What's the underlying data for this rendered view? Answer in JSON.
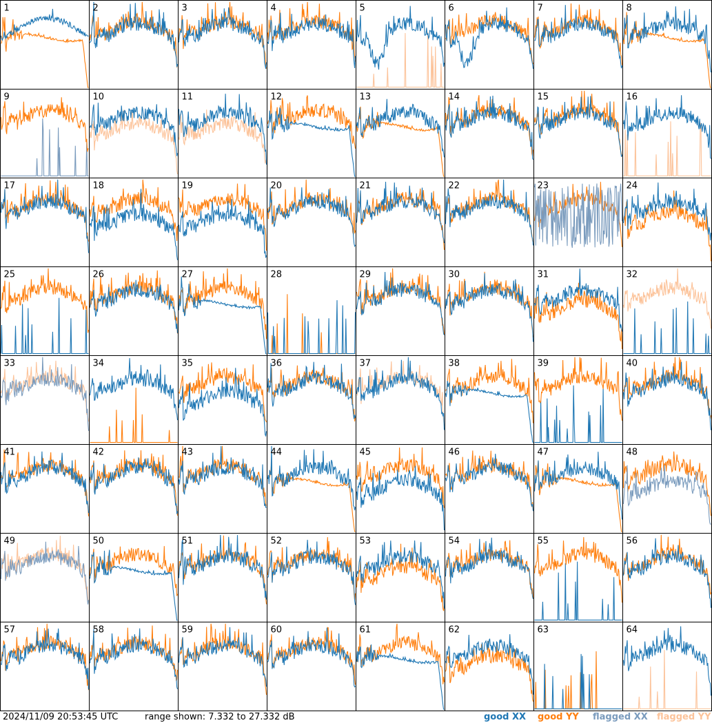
{
  "footer": {
    "timestamp": "2024/11/09 20:53:45 UTC",
    "range": "range shown: 7.332 to 27.332 dB"
  },
  "legend": {
    "good_xx": "good XX",
    "good_yy": "good YY",
    "flagged_xx": "flagged XX",
    "flagged_yy": "flagged YY"
  },
  "colors": {
    "good_xx": "#1f77b4",
    "good_yy": "#ff7f0e",
    "flagged_xx": "#7a9bbd",
    "flagged_yy": "#fcc39a"
  },
  "chart_data": {
    "type": "line",
    "title": "",
    "xlabel": "",
    "ylabel": "",
    "ylim": [
      7.332,
      27.332
    ],
    "units": "dB",
    "grid_rows": 8,
    "grid_cols": 8,
    "panels": [
      {
        "id": 1,
        "xx": "bandpass",
        "yy": "dropout",
        "xx_flagged": false,
        "yy_flagged": false
      },
      {
        "id": 2,
        "xx": "normal",
        "yy": "normal",
        "xx_flagged": false,
        "yy_flagged": false
      },
      {
        "id": 3,
        "xx": "normal",
        "yy": "normal",
        "xx_flagged": false,
        "yy_flagged": false
      },
      {
        "id": 4,
        "xx": "normal",
        "yy": "normal",
        "xx_flagged": false,
        "yy_flagged": false
      },
      {
        "id": 5,
        "xx": "deepdip",
        "yy": "spikes",
        "xx_flagged": false,
        "yy_flagged": true
      },
      {
        "id": 6,
        "xx": "deepdip",
        "yy": "normal",
        "xx_flagged": false,
        "yy_flagged": false
      },
      {
        "id": 7,
        "xx": "normal",
        "yy": "normal",
        "xx_flagged": false,
        "yy_flagged": false
      },
      {
        "id": 8,
        "xx": "normal",
        "yy": "dropout",
        "xx_flagged": false,
        "yy_flagged": false
      },
      {
        "id": 9,
        "xx": "spikes",
        "yy": "normal",
        "xx_flagged": true,
        "yy_flagged": false
      },
      {
        "id": 10,
        "xx": "normal",
        "yy": "lowered",
        "xx_flagged": false,
        "yy_flagged": true
      },
      {
        "id": 11,
        "xx": "normal",
        "yy": "lowered",
        "xx_flagged": false,
        "yy_flagged": true
      },
      {
        "id": 12,
        "xx": "dropout",
        "yy": "normal",
        "xx_flagged": false,
        "yy_flagged": false
      },
      {
        "id": 13,
        "xx": "normal",
        "yy": "dropout",
        "xx_flagged": false,
        "yy_flagged": false
      },
      {
        "id": 14,
        "xx": "normal",
        "yy": "normal",
        "xx_flagged": false,
        "yy_flagged": false
      },
      {
        "id": 15,
        "xx": "normal",
        "yy": "normal",
        "xx_flagged": false,
        "yy_flagged": false
      },
      {
        "id": 16,
        "xx": "normal",
        "yy": "spikes",
        "xx_flagged": false,
        "yy_flagged": true
      },
      {
        "id": 17,
        "xx": "normal",
        "yy": "normal",
        "xx_flagged": false,
        "yy_flagged": false
      },
      {
        "id": 18,
        "xx": "lowered",
        "yy": "normal",
        "xx_flagged": false,
        "yy_flagged": false
      },
      {
        "id": 19,
        "xx": "lowered",
        "yy": "normal",
        "xx_flagged": false,
        "yy_flagged": false
      },
      {
        "id": 20,
        "xx": "normal",
        "yy": "normal",
        "xx_flagged": false,
        "yy_flagged": false
      },
      {
        "id": 21,
        "xx": "normal",
        "yy": "normal",
        "xx_flagged": false,
        "yy_flagged": false
      },
      {
        "id": 22,
        "xx": "normal",
        "yy": "normal",
        "xx_flagged": false,
        "yy_flagged": false
      },
      {
        "id": 23,
        "xx": "noise",
        "yy": "normal",
        "xx_flagged": true,
        "yy_flagged": false
      },
      {
        "id": 24,
        "xx": "normal",
        "yy": "lowered",
        "xx_flagged": false,
        "yy_flagged": false
      },
      {
        "id": 25,
        "xx": "spikes",
        "yy": "normal",
        "xx_flagged": false,
        "yy_flagged": false
      },
      {
        "id": 26,
        "xx": "normal",
        "yy": "normal",
        "xx_flagged": false,
        "yy_flagged": false
      },
      {
        "id": 27,
        "xx": "dropout",
        "yy": "normal",
        "xx_flagged": false,
        "yy_flagged": false
      },
      {
        "id": 28,
        "xx": "spikes",
        "yy": "spikes",
        "xx_flagged": false,
        "yy_flagged": false
      },
      {
        "id": 29,
        "xx": "normal",
        "yy": "normal",
        "xx_flagged": false,
        "yy_flagged": false
      },
      {
        "id": 30,
        "xx": "normal",
        "yy": "normal",
        "xx_flagged": false,
        "yy_flagged": false
      },
      {
        "id": 31,
        "xx": "normal",
        "yy": "lowered",
        "xx_flagged": false,
        "yy_flagged": false
      },
      {
        "id": 32,
        "xx": "spikes",
        "yy": "normal",
        "xx_flagged": false,
        "yy_flagged": true
      },
      {
        "id": 33,
        "xx": "normal",
        "yy": "normal",
        "xx_flagged": true,
        "yy_flagged": true
      },
      {
        "id": 34,
        "xx": "normal",
        "yy": "spikes",
        "xx_flagged": false,
        "yy_flagged": false
      },
      {
        "id": 35,
        "xx": "lowered",
        "yy": "normal",
        "xx_flagged": false,
        "yy_flagged": false
      },
      {
        "id": 36,
        "xx": "normal",
        "yy": "normal",
        "xx_flagged": false,
        "yy_flagged": false
      },
      {
        "id": 37,
        "xx": "normal",
        "yy": "normal",
        "xx_flagged": false,
        "yy_flagged": true
      },
      {
        "id": 38,
        "xx": "dropout",
        "yy": "normal",
        "xx_flagged": false,
        "yy_flagged": false
      },
      {
        "id": 39,
        "xx": "spikes",
        "yy": "normal",
        "xx_flagged": false,
        "yy_flagged": false
      },
      {
        "id": 40,
        "xx": "normal",
        "yy": "normal",
        "xx_flagged": false,
        "yy_flagged": false
      },
      {
        "id": 41,
        "xx": "normal",
        "yy": "normal",
        "xx_flagged": false,
        "yy_flagged": false
      },
      {
        "id": 42,
        "xx": "normal",
        "yy": "normal",
        "xx_flagged": false,
        "yy_flagged": false
      },
      {
        "id": 43,
        "xx": "normal",
        "yy": "normal",
        "xx_flagged": false,
        "yy_flagged": false
      },
      {
        "id": 44,
        "xx": "normal",
        "yy": "dropout",
        "xx_flagged": false,
        "yy_flagged": false
      },
      {
        "id": 45,
        "xx": "lowered",
        "yy": "normal",
        "xx_flagged": false,
        "yy_flagged": false
      },
      {
        "id": 46,
        "xx": "normal",
        "yy": "normal",
        "xx_flagged": false,
        "yy_flagged": false
      },
      {
        "id": 47,
        "xx": "normal",
        "yy": "dropout",
        "xx_flagged": false,
        "yy_flagged": false
      },
      {
        "id": 48,
        "xx": "lowered",
        "yy": "normal",
        "xx_flagged": true,
        "yy_flagged": false
      },
      {
        "id": 49,
        "xx": "normal",
        "yy": "normal",
        "xx_flagged": true,
        "yy_flagged": true
      },
      {
        "id": 50,
        "xx": "dropout",
        "yy": "normal",
        "xx_flagged": false,
        "yy_flagged": false
      },
      {
        "id": 51,
        "xx": "normal",
        "yy": "normal",
        "xx_flagged": false,
        "yy_flagged": false
      },
      {
        "id": 52,
        "xx": "normal",
        "yy": "normal",
        "xx_flagged": false,
        "yy_flagged": false
      },
      {
        "id": 53,
        "xx": "normal",
        "yy": "lowered",
        "xx_flagged": false,
        "yy_flagged": false
      },
      {
        "id": 54,
        "xx": "normal",
        "yy": "normal",
        "xx_flagged": false,
        "yy_flagged": false
      },
      {
        "id": 55,
        "xx": "spikes",
        "yy": "normal",
        "xx_flagged": false,
        "yy_flagged": false
      },
      {
        "id": 56,
        "xx": "normal",
        "yy": "normal",
        "xx_flagged": false,
        "yy_flagged": false
      },
      {
        "id": 57,
        "xx": "normal",
        "yy": "normal",
        "xx_flagged": false,
        "yy_flagged": false
      },
      {
        "id": 58,
        "xx": "normal",
        "yy": "normal",
        "xx_flagged": false,
        "yy_flagged": false
      },
      {
        "id": 59,
        "xx": "normal",
        "yy": "normal",
        "xx_flagged": false,
        "yy_flagged": false
      },
      {
        "id": 60,
        "xx": "normal",
        "yy": "normal",
        "xx_flagged": false,
        "yy_flagged": false
      },
      {
        "id": 61,
        "xx": "dropout",
        "yy": "normal",
        "xx_flagged": false,
        "yy_flagged": false
      },
      {
        "id": 62,
        "xx": "normal",
        "yy": "lowered",
        "xx_flagged": false,
        "yy_flagged": false
      },
      {
        "id": 63,
        "xx": "spikes",
        "yy": "spikes",
        "xx_flagged": false,
        "yy_flagged": false
      },
      {
        "id": 64,
        "xx": "normal",
        "yy": "spikes",
        "xx_flagged": false,
        "yy_flagged": true
      }
    ]
  }
}
